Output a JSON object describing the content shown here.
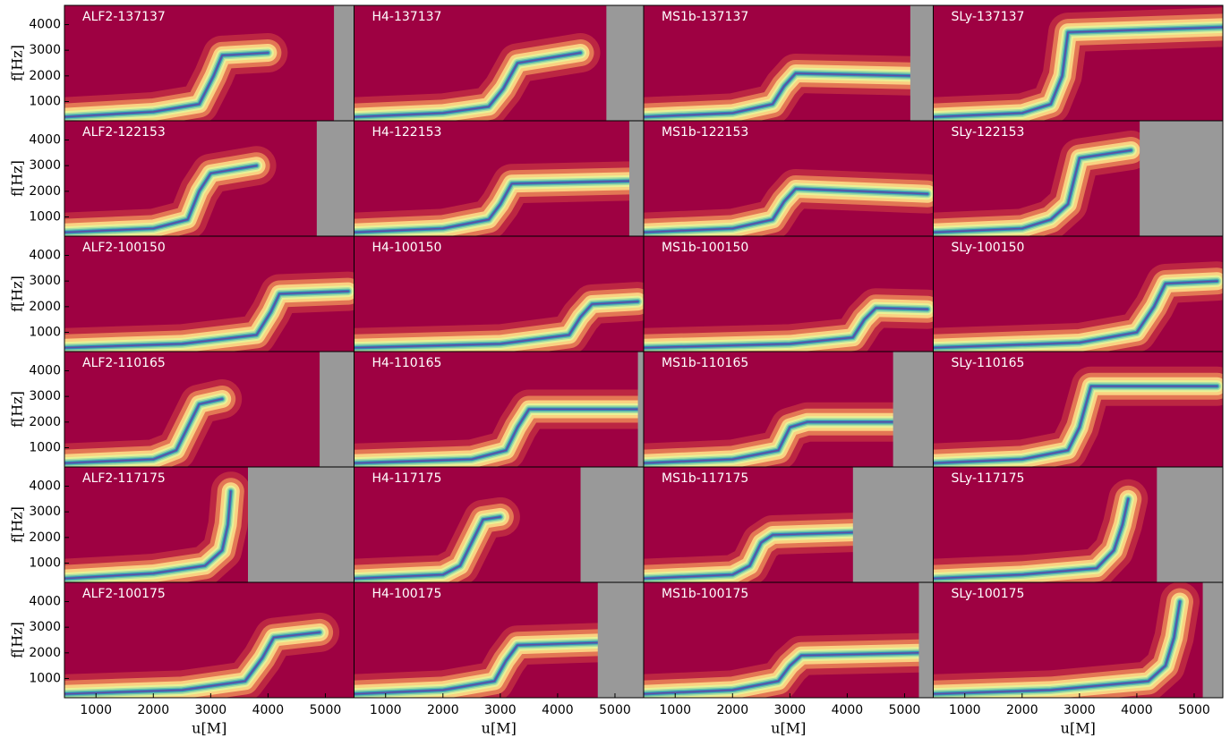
{
  "chart_data": [
    {
      "type": "spectrogram",
      "title": "ALF2-137137",
      "xlim": [
        450,
        5500
      ],
      "ylim": [
        250,
        4750
      ],
      "yticks": [
        1000,
        2000,
        3000,
        4000
      ],
      "ylabel": "f[Hz]",
      "x": [
        450,
        2000,
        2800,
        3050,
        3200,
        4000
      ],
      "values": [
        400,
        600,
        900,
        2000,
        2800,
        2900
      ],
      "data_end": 5150
    },
    {
      "type": "spectrogram",
      "title": "H4-137137",
      "xlim": [
        450,
        5500
      ],
      "ylim": [
        250,
        4750
      ],
      "x": [
        450,
        2000,
        2800,
        3050,
        3300,
        4400
      ],
      "values": [
        400,
        550,
        800,
        1500,
        2500,
        2900
      ],
      "data_end": 4850
    },
    {
      "type": "spectrogram",
      "title": "MS1b-137137",
      "xlim": [
        450,
        5500
      ],
      "ylim": [
        250,
        4750
      ],
      "x": [
        450,
        2000,
        2700,
        2900,
        3100,
        5100
      ],
      "values": [
        400,
        550,
        900,
        1600,
        2100,
        2000
      ],
      "data_end": 5100
    },
    {
      "type": "spectrogram",
      "title": "SLy-137137",
      "xlim": [
        450,
        5500
      ],
      "ylim": [
        250,
        4750
      ],
      "x": [
        450,
        2000,
        2500,
        2700,
        2800,
        5500
      ],
      "values": [
        400,
        550,
        900,
        2000,
        3700,
        3900
      ],
      "data_end": null
    },
    {
      "type": "spectrogram",
      "title": "ALF2-122153",
      "xlim": [
        450,
        5500
      ],
      "ylim": [
        250,
        4750
      ],
      "yticks": [
        1000,
        2000,
        3000,
        4000
      ],
      "ylabel": "f[Hz]",
      "x": [
        450,
        2000,
        2600,
        2800,
        3000,
        3800
      ],
      "values": [
        400,
        550,
        900,
        2000,
        2700,
        3000
      ],
      "data_end": 4850
    },
    {
      "type": "spectrogram",
      "title": "H4-122153",
      "xlim": [
        450,
        5500
      ],
      "ylim": [
        250,
        4750
      ],
      "x": [
        450,
        2000,
        2800,
        3000,
        3200,
        5250
      ],
      "values": [
        400,
        550,
        900,
        1500,
        2300,
        2400
      ],
      "data_end": 5250
    },
    {
      "type": "spectrogram",
      "title": "MS1b-122153",
      "xlim": [
        450,
        5500
      ],
      "ylim": [
        250,
        4750
      ],
      "x": [
        450,
        2000,
        2700,
        2900,
        3100,
        5400
      ],
      "values": [
        400,
        550,
        900,
        1600,
        2100,
        1900
      ],
      "data_end": null
    },
    {
      "type": "spectrogram",
      "title": "SLy-122153",
      "xlim": [
        450,
        5500
      ],
      "ylim": [
        250,
        4750
      ],
      "x": [
        450,
        2000,
        2500,
        2800,
        3000,
        3900
      ],
      "values": [
        400,
        550,
        900,
        1500,
        3300,
        3600
      ],
      "data_end": 4050
    },
    {
      "type": "spectrogram",
      "title": "ALF2-100150",
      "xlim": [
        450,
        5500
      ],
      "ylim": [
        250,
        4750
      ],
      "yticks": [
        1000,
        2000,
        3000,
        4000
      ],
      "ylabel": "f[Hz]",
      "x": [
        450,
        2500,
        3800,
        4050,
        4200,
        5400
      ],
      "values": [
        400,
        550,
        900,
        1800,
        2500,
        2600
      ],
      "data_end": null
    },
    {
      "type": "spectrogram",
      "title": "H4-100150",
      "xlim": [
        450,
        5500
      ],
      "ylim": [
        250,
        4750
      ],
      "x": [
        450,
        3000,
        4200,
        4400,
        4600,
        5400
      ],
      "values": [
        400,
        550,
        900,
        1600,
        2100,
        2200
      ],
      "data_end": null
    },
    {
      "type": "spectrogram",
      "title": "MS1b-100150",
      "xlim": [
        450,
        5500
      ],
      "ylim": [
        250,
        4750
      ],
      "x": [
        450,
        3000,
        4100,
        4300,
        4500,
        5400
      ],
      "values": [
        400,
        550,
        800,
        1500,
        1950,
        1900
      ],
      "data_end": null
    },
    {
      "type": "spectrogram",
      "title": "SLy-100150",
      "xlim": [
        450,
        5500
      ],
      "ylim": [
        250,
        4750
      ],
      "x": [
        450,
        3000,
        4000,
        4300,
        4500,
        5400
      ],
      "values": [
        400,
        600,
        1000,
        2000,
        2900,
        3000
      ],
      "data_end": null
    },
    {
      "type": "spectrogram",
      "title": "ALF2-110165",
      "xlim": [
        450,
        5500
      ],
      "ylim": [
        250,
        4750
      ],
      "yticks": [
        1000,
        2000,
        3000,
        4000
      ],
      "ylabel": "f[Hz]",
      "x": [
        450,
        2000,
        2400,
        2600,
        2800,
        3200
      ],
      "values": [
        400,
        550,
        900,
        1800,
        2700,
        2900
      ],
      "data_end": 4900
    },
    {
      "type": "spectrogram",
      "title": "H4-110165",
      "xlim": [
        450,
        5500
      ],
      "ylim": [
        250,
        4750
      ],
      "x": [
        450,
        2500,
        3100,
        3300,
        3500,
        5400
      ],
      "values": [
        400,
        550,
        900,
        1800,
        2500,
        2500
      ],
      "data_end": 5400
    },
    {
      "type": "spectrogram",
      "title": "MS1b-110165",
      "xlim": [
        450,
        5500
      ],
      "ylim": [
        250,
        4750
      ],
      "x": [
        450,
        2000,
        2800,
        3000,
        3300,
        4800
      ],
      "values": [
        400,
        550,
        900,
        1800,
        2000,
        2000
      ],
      "data_end": 4800
    },
    {
      "type": "spectrogram",
      "title": "SLy-110165",
      "xlim": [
        450,
        5500
      ],
      "ylim": [
        250,
        4750
      ],
      "x": [
        450,
        2000,
        2800,
        3000,
        3200,
        5400
      ],
      "values": [
        400,
        550,
        900,
        1800,
        3400,
        3400
      ],
      "data_end": null
    },
    {
      "type": "spectrogram",
      "title": "ALF2-117175",
      "xlim": [
        450,
        5500
      ],
      "ylim": [
        250,
        4750
      ],
      "yticks": [
        1000,
        2000,
        3000,
        4000
      ],
      "ylabel": "f[Hz]",
      "x": [
        450,
        2000,
        2900,
        3200,
        3300,
        3350
      ],
      "values": [
        400,
        600,
        900,
        1500,
        2500,
        3800
      ],
      "data_end": 3650
    },
    {
      "type": "spectrogram",
      "title": "H4-117175",
      "xlim": [
        450,
        5500
      ],
      "ylim": [
        250,
        4750
      ],
      "x": [
        450,
        2000,
        2300,
        2500,
        2700,
        3000
      ],
      "values": [
        400,
        550,
        900,
        1800,
        2700,
        2800
      ],
      "data_end": 4400
    },
    {
      "type": "spectrogram",
      "title": "MS1b-117175",
      "xlim": [
        450,
        5500
      ],
      "ylim": [
        250,
        4750
      ],
      "x": [
        450,
        2000,
        2300,
        2500,
        2700,
        4100
      ],
      "values": [
        400,
        550,
        900,
        1800,
        2100,
        2200
      ],
      "data_end": 4100
    },
    {
      "type": "spectrogram",
      "title": "SLy-117175",
      "xlim": [
        450,
        5500
      ],
      "ylim": [
        250,
        4750
      ],
      "x": [
        450,
        2000,
        3300,
        3600,
        3750,
        3850
      ],
      "values": [
        400,
        550,
        800,
        1500,
        2500,
        3500
      ],
      "data_end": 4350
    },
    {
      "type": "spectrogram",
      "title": "ALF2-100175",
      "xlim": [
        450,
        5500
      ],
      "ylim": [
        250,
        4750
      ],
      "yticks": [
        1000,
        2000,
        3000,
        4000
      ],
      "ylabel": "f[Hz]",
      "xticks": [
        1000,
        2000,
        3000,
        4000,
        5000
      ],
      "xlabel": "u[M]",
      "x": [
        450,
        2500,
        3600,
        3900,
        4100,
        4900
      ],
      "values": [
        400,
        550,
        900,
        1800,
        2600,
        2800
      ],
      "data_end": null
    },
    {
      "type": "spectrogram",
      "title": "H4-100175",
      "xlim": [
        450,
        5500
      ],
      "ylim": [
        250,
        4750
      ],
      "xticks": [
        1000,
        2000,
        3000,
        4000,
        5000
      ],
      "xlabel": "u[M]",
      "x": [
        450,
        2000,
        2900,
        3100,
        3300,
        4700
      ],
      "values": [
        400,
        550,
        900,
        1700,
        2300,
        2400
      ],
      "data_end": 4700
    },
    {
      "type": "spectrogram",
      "title": "MS1b-100175",
      "xlim": [
        450,
        5500
      ],
      "ylim": [
        250,
        4750
      ],
      "xticks": [
        1000,
        2000,
        3000,
        4000,
        5000
      ],
      "xlabel": "u[M]",
      "x": [
        450,
        2000,
        2800,
        3000,
        3200,
        5250
      ],
      "values": [
        400,
        550,
        900,
        1500,
        1900,
        2000
      ],
      "data_end": 5250
    },
    {
      "type": "spectrogram",
      "title": "SLy-100175",
      "xlim": [
        450,
        5500
      ],
      "ylim": [
        250,
        4750
      ],
      "xticks": [
        1000,
        2000,
        3000,
        4000,
        5000
      ],
      "xlabel": "u[M]",
      "x": [
        450,
        2500,
        4200,
        4500,
        4650,
        4750
      ],
      "values": [
        400,
        550,
        900,
        1500,
        2600,
        4000
      ],
      "data_end": 5150
    }
  ]
}
